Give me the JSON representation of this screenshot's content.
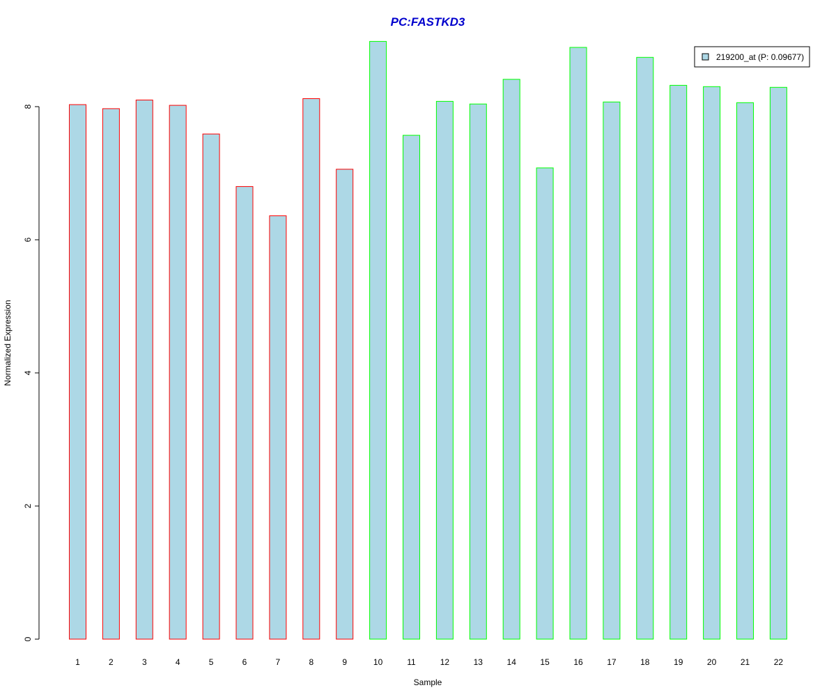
{
  "chart_data": {
    "type": "bar",
    "title": "PC:FASTKD3",
    "xlabel": "Sample",
    "ylabel": "Normalized Expression",
    "ylim": [
      0,
      9
    ],
    "yticks": [
      0,
      2,
      4,
      6,
      8
    ],
    "grid": false,
    "legend_position": "top-right",
    "categories": [
      "1",
      "2",
      "3",
      "4",
      "5",
      "6",
      "7",
      "8",
      "9",
      "10",
      "11",
      "12",
      "13",
      "14",
      "15",
      "16",
      "17",
      "18",
      "19",
      "20",
      "21",
      "22"
    ],
    "series": [
      {
        "name": "219200_at (P: 0.09677)",
        "values": [
          8.03,
          7.97,
          8.1,
          8.02,
          7.59,
          6.8,
          6.36,
          8.12,
          7.06,
          8.98,
          7.57,
          8.08,
          8.04,
          8.41,
          7.08,
          8.89,
          8.07,
          8.74,
          8.32,
          8.3,
          8.06,
          8.29
        ]
      }
    ],
    "groups": [
      {
        "samples": [
          1,
          9
        ],
        "border_color": "#ff0000"
      },
      {
        "samples": [
          10,
          22
        ],
        "border_color": "#00ff00"
      }
    ],
    "colors": {
      "bar_fill": "#add8e6",
      "title": "#0000cd",
      "axis": "#000000"
    }
  }
}
